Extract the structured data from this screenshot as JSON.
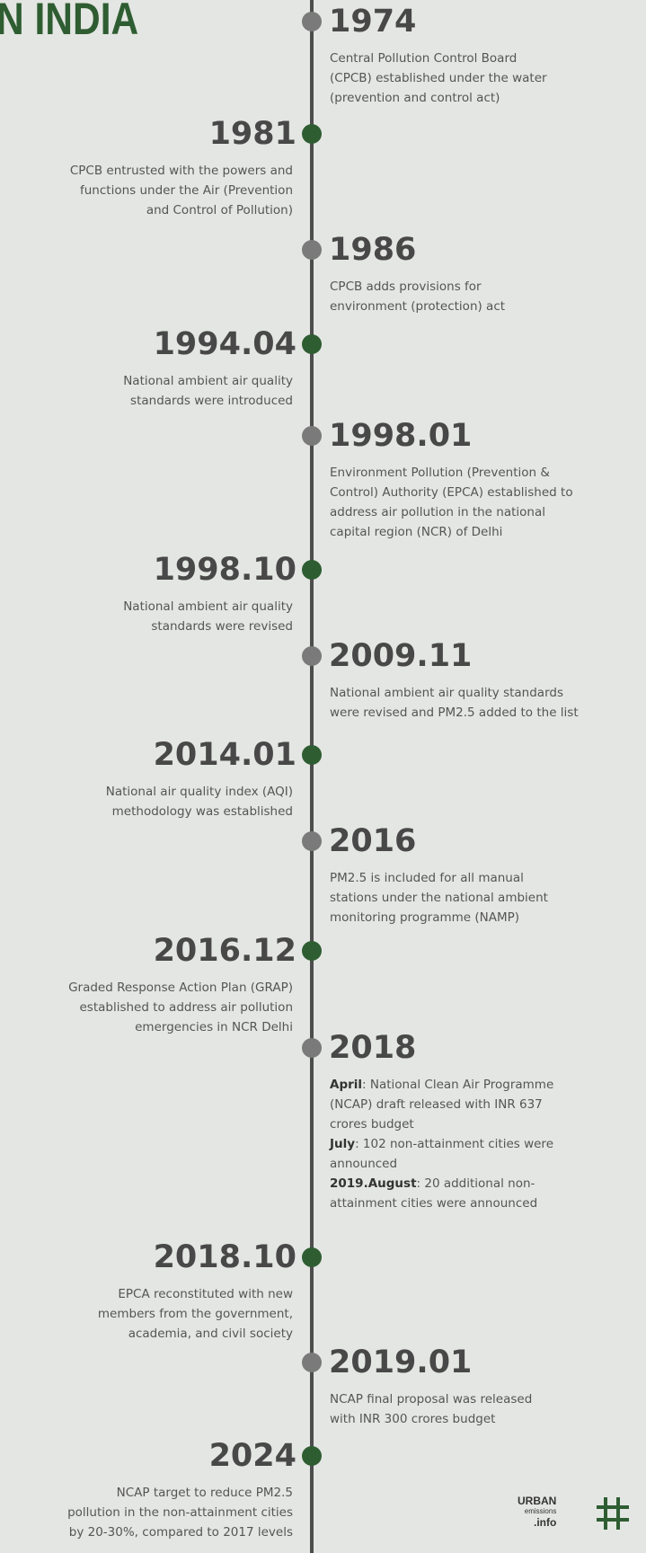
{
  "header": {
    "title": "N INDIA"
  },
  "events": [
    {
      "year": "1974",
      "lines": [
        {
          "text": "Central Pollution Control Board"
        },
        {
          "text": "(CPCB) established under the water"
        },
        {
          "text": "(prevention and control act)"
        }
      ]
    },
    {
      "year": "1981",
      "lines": [
        {
          "text": "CPCB entrusted with the powers and"
        },
        {
          "text": "functions under the Air (Prevention"
        },
        {
          "text": "and Control of Pollution)"
        }
      ]
    },
    {
      "year": "1986",
      "lines": [
        {
          "text": "CPCB adds provisions for"
        },
        {
          "text": "environment (protection) act"
        }
      ]
    },
    {
      "year": "1994.04",
      "lines": [
        {
          "text": "National ambient air quality"
        },
        {
          "text": "standards were introduced"
        }
      ]
    },
    {
      "year": "1998.01",
      "lines": [
        {
          "text": "Environment Pollution (Prevention &"
        },
        {
          "text": "Control) Authority (EPCA) established to"
        },
        {
          "text": "address air pollution in the national"
        },
        {
          "text": "capital region (NCR) of Delhi"
        }
      ]
    },
    {
      "year": "1998.10",
      "lines": [
        {
          "text": "National ambient air quality"
        },
        {
          "text": "standards were revised"
        }
      ]
    },
    {
      "year": "2009.11",
      "lines": [
        {
          "text": "National ambient air quality standards"
        },
        {
          "text": "were revised and PM2.5 added to the list"
        }
      ]
    },
    {
      "year": "2014.01",
      "lines": [
        {
          "text": "National air quality index (AQI)"
        },
        {
          "text": "methodology was established"
        }
      ]
    },
    {
      "year": "2016",
      "lines": [
        {
          "text": "PM2.5 is included for all manual"
        },
        {
          "text": "stations under the national ambient"
        },
        {
          "text": "monitoring programme (NAMP)"
        }
      ]
    },
    {
      "year": "2016.12",
      "lines": [
        {
          "text": "Graded Response Action Plan (GRAP)"
        },
        {
          "text": "established to address air pollution"
        },
        {
          "text": "emergencies in NCR Delhi"
        }
      ]
    },
    {
      "year": "2018",
      "lines": [
        {
          "bold": "April",
          "text": ": National Clean Air Programme"
        },
        {
          "text": "(NCAP) draft released with INR 637"
        },
        {
          "text": "crores budget"
        },
        {
          "bold": "July",
          "text": ": 102 non-attainment cities were"
        },
        {
          "text": "announced"
        },
        {
          "bold": "2019.August",
          "text": ": 20 additional non-"
        },
        {
          "text": "attainment cities were announced"
        }
      ]
    },
    {
      "year": "2018.10",
      "lines": [
        {
          "text": "EPCA reconstituted with new"
        },
        {
          "text": "members from the government,"
        },
        {
          "text": "academia, and civil society"
        }
      ]
    },
    {
      "year": "2019.01",
      "lines": [
        {
          "text": "NCAP final proposal was released"
        },
        {
          "text": "with INR 300 crores budget"
        }
      ]
    },
    {
      "year": "2024",
      "lines": [
        {
          "text": "NCAP target to reduce PM2.5"
        },
        {
          "text": "pollution in the non-attainment cities"
        },
        {
          "text": "by 20-30%, compared to 2017 levels"
        }
      ]
    }
  ],
  "logo": {
    "line1": "URBAN",
    "line2": "emissions",
    "line3": ".info"
  }
}
